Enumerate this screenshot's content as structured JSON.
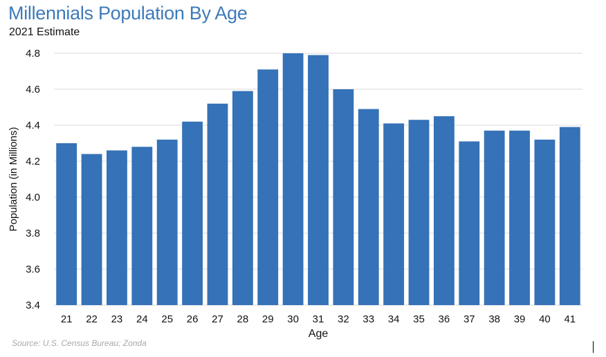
{
  "header": {
    "title": "Millennials Population By Age",
    "subtitle": "2021 Estimate"
  },
  "footer": {
    "source": "Source: U.S. Census Bureau; Zonda"
  },
  "colors": {
    "bar": "#3572b7",
    "title": "#3d7ab8",
    "grid": "#d9d9d9",
    "source": "#a8a8a8"
  },
  "chart_data": {
    "type": "bar",
    "title": "Millennials Population By Age",
    "subtitle": "2021 Estimate",
    "xlabel": "Age",
    "ylabel": "Population (in Millions)",
    "categories": [
      "21",
      "22",
      "23",
      "24",
      "25",
      "26",
      "27",
      "28",
      "29",
      "30",
      "31",
      "32",
      "33",
      "34",
      "35",
      "36",
      "37",
      "38",
      "39",
      "40",
      "41"
    ],
    "values": [
      4.3,
      4.24,
      4.26,
      4.28,
      4.32,
      4.42,
      4.52,
      4.59,
      4.71,
      4.8,
      4.79,
      4.6,
      4.49,
      4.41,
      4.43,
      4.45,
      4.31,
      4.37,
      4.37,
      4.32,
      4.39
    ],
    "ylim": [
      3.4,
      4.8
    ],
    "yticks": [
      "3.4",
      "3.6",
      "3.8",
      "4.0",
      "4.2",
      "4.4",
      "4.6",
      "4.8"
    ],
    "grid": true,
    "legend": "none"
  }
}
